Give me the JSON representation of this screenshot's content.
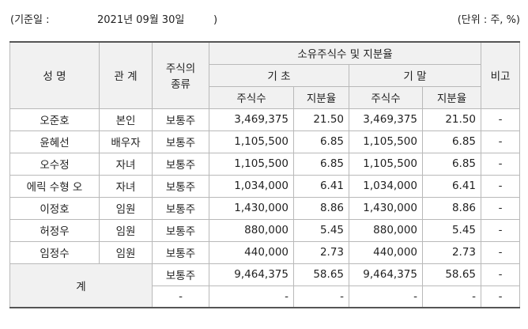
{
  "header": {
    "base_label": "(기준일 :",
    "base_date": "2021년 09월 30일",
    "close_paren": ")",
    "unit": "(단위 : 주, %)"
  },
  "columns": {
    "name": "성 명",
    "relation": "관 계",
    "stock_type_line1": "주식의",
    "stock_type_line2": "종류",
    "ownership": "소유주식수 및 지분율",
    "begin": "기 초",
    "end": "기 말",
    "shares": "주식수",
    "ratio": "지분율",
    "note": "비고"
  },
  "rows": [
    {
      "name": "오준호",
      "relation": "본인",
      "type": "보통주",
      "begin_shares": "3,469,375",
      "begin_ratio": "21.50",
      "end_shares": "3,469,375",
      "end_ratio": "21.50",
      "note": "-"
    },
    {
      "name": "윤혜선",
      "relation": "배우자",
      "type": "보통주",
      "begin_shares": "1,105,500",
      "begin_ratio": "6.85",
      "end_shares": "1,105,500",
      "end_ratio": "6.85",
      "note": "-"
    },
    {
      "name": "오수정",
      "relation": "자녀",
      "type": "보통주",
      "begin_shares": "1,105,500",
      "begin_ratio": "6.85",
      "end_shares": "1,105,500",
      "end_ratio": "6.85",
      "note": "-"
    },
    {
      "name": "에릭 수형 오",
      "relation": "자녀",
      "type": "보통주",
      "begin_shares": "1,034,000",
      "begin_ratio": "6.41",
      "end_shares": "1,034,000",
      "end_ratio": "6.41",
      "note": "-"
    },
    {
      "name": "이정호",
      "relation": "임원",
      "type": "보통주",
      "begin_shares": "1,430,000",
      "begin_ratio": "8.86",
      "end_shares": "1,430,000",
      "end_ratio": "8.86",
      "note": "-"
    },
    {
      "name": "허정우",
      "relation": "임원",
      "type": "보통주",
      "begin_shares": "880,000",
      "begin_ratio": "5.45",
      "end_shares": "880,000",
      "end_ratio": "5.45",
      "note": "-"
    },
    {
      "name": "임정수",
      "relation": "임원",
      "type": "보통주",
      "begin_shares": "440,000",
      "begin_ratio": "2.73",
      "end_shares": "440,000",
      "end_ratio": "2.73",
      "note": "-"
    }
  ],
  "total": {
    "label": "계",
    "common": {
      "type": "보통주",
      "begin_shares": "9,464,375",
      "begin_ratio": "58.65",
      "end_shares": "9,464,375",
      "end_ratio": "58.65",
      "note": "-"
    },
    "other": {
      "type": "-",
      "begin_shares": "-",
      "begin_ratio": "-",
      "end_shares": "-",
      "end_ratio": "-",
      "note": "-"
    }
  }
}
